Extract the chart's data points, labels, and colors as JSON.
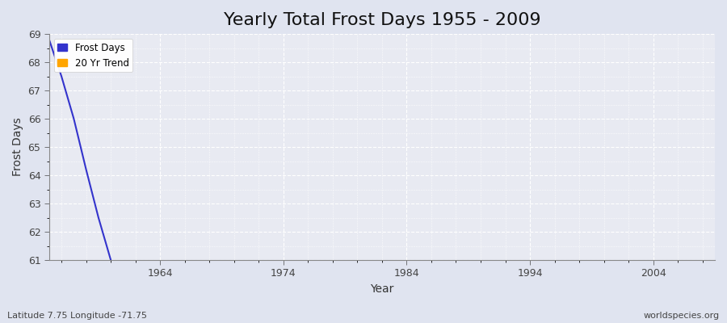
{
  "title": "Yearly Total Frost Days 1955 - 2009",
  "xlabel": "Year",
  "ylabel": "Frost Days",
  "ylim": [
    61,
    69
  ],
  "xlim": [
    1955,
    2009
  ],
  "yticks": [
    61,
    62,
    63,
    64,
    65,
    66,
    67,
    68,
    69
  ],
  "xticks": [
    1964,
    1974,
    1984,
    1994,
    2004
  ],
  "frost_days_x": [
    1955,
    1956,
    1957,
    1958,
    1959,
    1960
  ],
  "frost_days_y": [
    68.8,
    67.5,
    66.0,
    64.2,
    62.5,
    61.0
  ],
  "trend_x": [],
  "trend_y": [],
  "frost_color": "#3333cc",
  "trend_color": "#ffa500",
  "bg_color": "#e8eaf2",
  "grid_color": "#ffffff",
  "fig_bg_color": "#e0e4f0",
  "subtitle_left": "Latitude 7.75 Longitude -71.75",
  "subtitle_right": "worldspecies.org",
  "title_fontsize": 16,
  "label_fontsize": 10,
  "tick_fontsize": 9,
  "legend_frost": "Frost Days",
  "legend_trend": "20 Yr Trend"
}
